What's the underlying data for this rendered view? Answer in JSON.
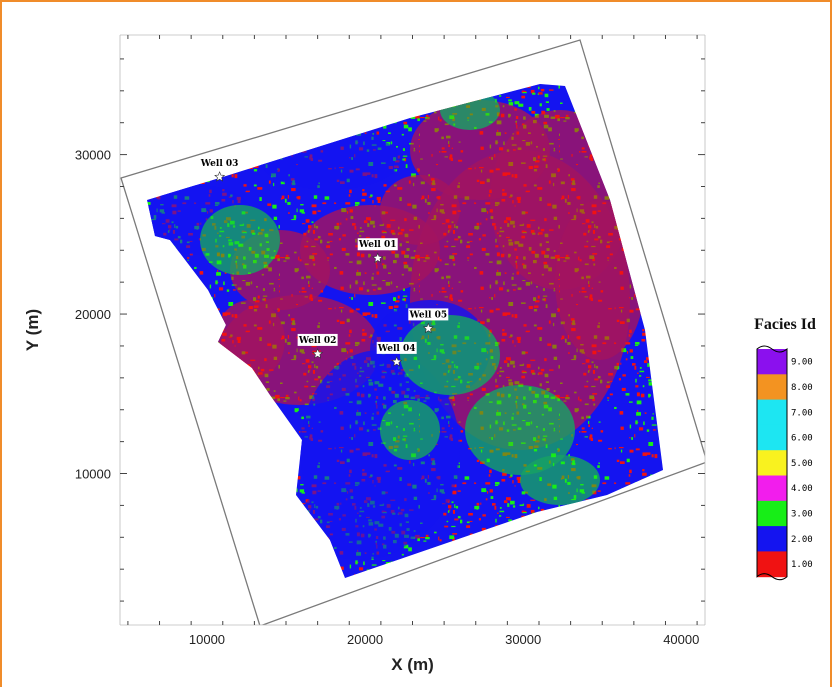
{
  "chart_data": {
    "type": "heatmap",
    "title": "",
    "xlabel": "X (m)",
    "ylabel": "Y (m)",
    "xlim": [
      4500,
      41500
    ],
    "ylim": [
      500,
      37500
    ],
    "xticks": [
      10000,
      20000,
      30000,
      40000
    ],
    "xtick_labels": [
      "10000",
      "20000",
      "30000",
      "40000"
    ],
    "yticks": [
      10000,
      20000,
      30000
    ],
    "ytick_labels": [
      "10000",
      "20000",
      "30000"
    ],
    "grid": false,
    "wells": [
      {
        "name": "Well 03",
        "x": 10800,
        "y": 28600
      },
      {
        "name": "Well 01",
        "x": 20800,
        "y": 23500
      },
      {
        "name": "Well 05",
        "x": 24000,
        "y": 19100
      },
      {
        "name": "Well 02",
        "x": 17000,
        "y": 17500
      },
      {
        "name": "Well 04",
        "x": 22000,
        "y": 17000
      }
    ],
    "legend": {
      "title": "Facies Id",
      "position": "right",
      "entries": [
        {
          "label": "9.00",
          "color": "#8b10ee"
        },
        {
          "label": "8.00",
          "color": "#f39321"
        },
        {
          "label": "7.00",
          "color": "#1de6f2"
        },
        {
          "label": "6.00",
          "color": "#1de6f2"
        },
        {
          "label": "5.00",
          "color": "#f9f21f"
        },
        {
          "label": "4.00",
          "color": "#f21ded"
        },
        {
          "label": "3.00",
          "color": "#17ee17"
        },
        {
          "label": "2.00",
          "color": "#1414f0"
        },
        {
          "label": "1.00",
          "color": "#f01212"
        }
      ]
    },
    "facies_colors": {
      "red": "#f01212",
      "blue": "#1414f0",
      "green": "#17ee17"
    }
  },
  "frame_color": "#f08c2a"
}
